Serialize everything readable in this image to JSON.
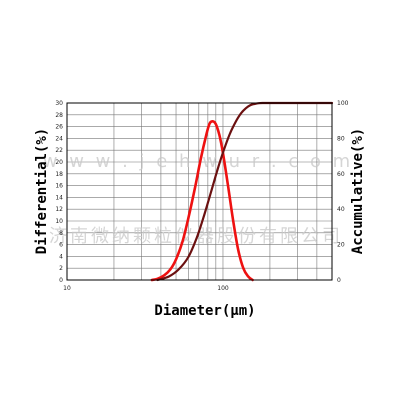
{
  "chart_data": {
    "type": "line",
    "xlabel": "Diameter(μm)",
    "ylabel_left": "Differential(%)",
    "ylabel_right": "Accumulative(%)",
    "x_scale": "log",
    "xlim": [
      10,
      500
    ],
    "x_ticks": [
      {
        "value": 10,
        "label": "10"
      },
      {
        "value": 100,
        "label": "100"
      }
    ],
    "y_left_lim": [
      0,
      30
    ],
    "y_left_ticks": [
      0,
      2,
      4,
      6,
      8,
      10,
      12,
      14,
      16,
      18,
      20,
      22,
      24,
      26,
      28,
      30
    ],
    "y_right_lim": [
      0,
      100
    ],
    "y_right_ticks": [
      0,
      20,
      40,
      60,
      80,
      100
    ],
    "grid": true,
    "series": [
      {
        "axis": "left",
        "color": "#ee1111",
        "x": [
          35,
          38,
          42,
          46,
          50,
          55,
          60,
          66,
          72,
          78,
          82,
          86,
          90,
          95,
          100,
          108,
          116,
          125,
          135,
          145,
          155
        ],
        "y": [
          0,
          0.2,
          0.8,
          1.8,
          3.5,
          6.5,
          10.5,
          15.5,
          20.5,
          24.5,
          26.5,
          26.9,
          26.4,
          24.5,
          21.5,
          15.8,
          10.2,
          5.2,
          2.0,
          0.6,
          0
        ]
      },
      {
        "axis": "right",
        "color": "#6b1010",
        "x": [
          38,
          45,
          52,
          60,
          68,
          76,
          84,
          92,
          100,
          110,
          120,
          130,
          140,
          150,
          160,
          170,
          180,
          200,
          300,
          500
        ],
        "y": [
          0,
          2,
          6,
          13,
          24,
          37,
          50,
          62,
          72,
          82,
          89,
          94,
          97,
          98.8,
          99.5,
          99.9,
          100,
          100,
          100,
          100
        ]
      }
    ]
  },
  "watermark": {
    "line1": "w w w . j e h w u r . c o m",
    "line2": "济南微纳颗粒仪器股份有限公司"
  }
}
